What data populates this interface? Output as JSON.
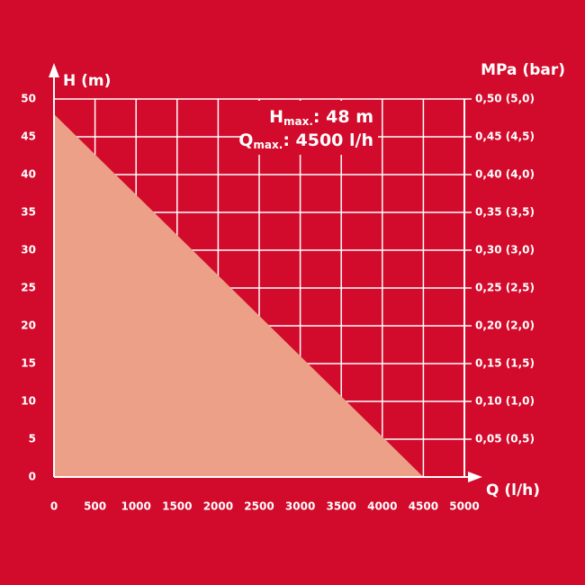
{
  "chart_data": {
    "type": "area",
    "y_label": "H (m)",
    "y2_label": "MPa (bar)",
    "x_label": "Q (l/h)",
    "annotations": [
      {
        "symbol": "H",
        "subscript": "max.",
        "text": ": 48 m"
      },
      {
        "symbol": "Q",
        "subscript": "max.",
        "text": ": 4500 l/h"
      }
    ],
    "background": "#d20a2b",
    "grid": true,
    "series": [
      {
        "x": [
          0,
          4500
        ],
        "values": [
          48,
          0
        ],
        "color": "#eca088"
      }
    ],
    "xlim": [
      0,
      5000
    ],
    "xticks": [
      0,
      500,
      1000,
      1500,
      2000,
      2500,
      3000,
      3500,
      4000,
      4500,
      5000
    ],
    "ylim": [
      0,
      50
    ],
    "yticks": [
      0,
      5,
      10,
      15,
      20,
      25,
      30,
      35,
      40,
      45,
      50
    ],
    "y2lim": [
      0,
      0.5
    ],
    "y2ticks": [
      {
        "value": 0.05,
        "label": "0,05 (0,5)"
      },
      {
        "value": 0.1,
        "label": "0,10 (1,0)"
      },
      {
        "value": 0.15,
        "label": "0,15 (1,5)"
      },
      {
        "value": 0.2,
        "label": "0,20 (2,0)"
      },
      {
        "value": 0.25,
        "label": "0,25 (2,5)"
      },
      {
        "value": 0.3,
        "label": "0,30 (3,0)"
      },
      {
        "value": 0.35,
        "label": "0,35 (3,5)"
      },
      {
        "value": 0.4,
        "label": "0,40 (4,0)"
      },
      {
        "value": 0.45,
        "label": "0,45 (4,5)"
      },
      {
        "value": 0.5,
        "label": "0,50 (5,0)"
      }
    ]
  }
}
